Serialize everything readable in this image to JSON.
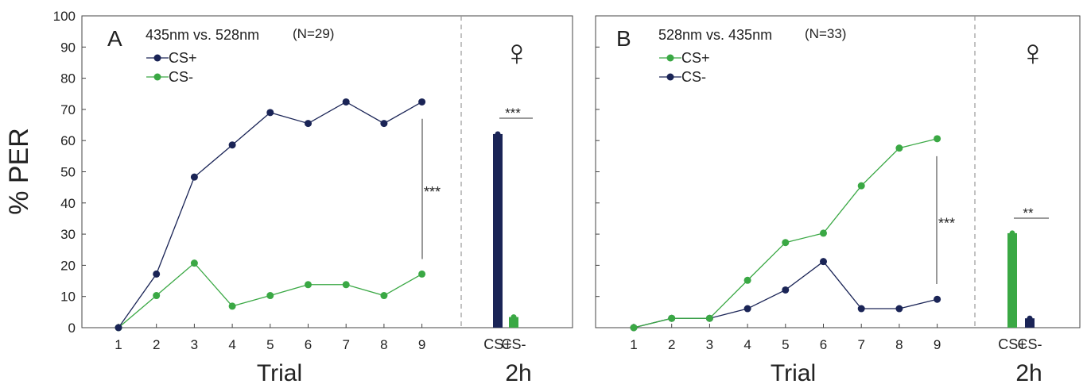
{
  "ylabel": "% PER",
  "yticks": [
    "0",
    "10",
    "20",
    "30",
    "40",
    "50",
    "60",
    "70",
    "80",
    "90",
    "100"
  ],
  "colors": {
    "dark": "#1a2456",
    "green": "#3aa844"
  },
  "chart_data": [
    {
      "type": "line",
      "panel_letter": "A",
      "subtitle": "435nm vs. 528nm",
      "n_label": "(N=29)",
      "xlabel": "Trial",
      "x": [
        1,
        2,
        3,
        4,
        5,
        6,
        7,
        8,
        9
      ],
      "ylim": [
        0,
        100
      ],
      "legend": [
        {
          "label": "CS+",
          "color": "#1a2456"
        },
        {
          "label": "CS-",
          "color": "#3aa844"
        }
      ],
      "series": [
        {
          "name": "CS+",
          "color": "#1a2456",
          "values": [
            0,
            17.2,
            48.3,
            58.6,
            69.0,
            65.5,
            72.4,
            65.5,
            72.4
          ]
        },
        {
          "name": "CS-",
          "color": "#3aa844",
          "values": [
            0,
            10.3,
            20.7,
            6.9,
            10.3,
            13.8,
            13.8,
            10.3,
            17.2
          ]
        }
      ],
      "sig_line_label": "***",
      "sig_line_range": [
        22,
        67
      ],
      "bars": {
        "xlabel": "2h",
        "sex_symbol": "♀",
        "categories": [
          "CS+",
          "CS-"
        ],
        "values": [
          62.1,
          3.4
        ],
        "colors": [
          "#1a2456",
          "#3aa844"
        ],
        "sig_label": "***"
      }
    },
    {
      "type": "line",
      "panel_letter": "B",
      "subtitle": "528nm vs. 435nm",
      "n_label": "(N=33)",
      "xlabel": "Trial",
      "x": [
        1,
        2,
        3,
        4,
        5,
        6,
        7,
        8,
        9
      ],
      "ylim": [
        0,
        100
      ],
      "legend": [
        {
          "label": "CS+",
          "color": "#3aa844"
        },
        {
          "label": "CS-",
          "color": "#1a2456"
        }
      ],
      "series": [
        {
          "name": "CS+",
          "color": "#3aa844",
          "values": [
            0,
            3.0,
            3.0,
            15.2,
            27.3,
            30.3,
            45.5,
            57.6,
            60.6
          ]
        },
        {
          "name": "CS-",
          "color": "#1a2456",
          "values": [
            0,
            3.0,
            3.0,
            6.1,
            12.1,
            21.2,
            6.1,
            6.1,
            9.1
          ]
        }
      ],
      "sig_line_label": "***",
      "sig_line_range": [
        14,
        55
      ],
      "bars": {
        "xlabel": "2h",
        "sex_symbol": "♀",
        "categories": [
          "CS+",
          "CS-"
        ],
        "values": [
          30.3,
          3.0
        ],
        "colors": [
          "#3aa844",
          "#1a2456"
        ],
        "sig_label": "**"
      }
    }
  ]
}
